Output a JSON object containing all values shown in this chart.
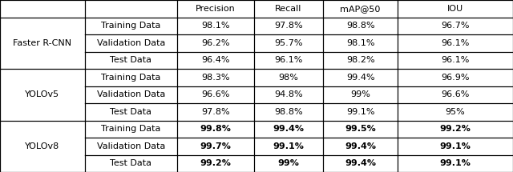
{
  "figsize": [
    6.4,
    2.15
  ],
  "dpi": 100,
  "col_headers": [
    "Precision",
    "Recall",
    "mAP@50",
    "IOU"
  ],
  "row_groups": [
    {
      "model": "Faster R-CNN",
      "rows": [
        {
          "label": "Training Data",
          "vals": [
            "98.1%",
            "97.8%",
            "98.8%",
            "96.7%"
          ],
          "bold": false
        },
        {
          "label": "Validation Data",
          "vals": [
            "96.2%",
            "95.7%",
            "98.1%",
            "96.1%"
          ],
          "bold": false
        },
        {
          "label": "Test Data",
          "vals": [
            "96.4%",
            "96.1%",
            "98.2%",
            "96.1%"
          ],
          "bold": false
        }
      ]
    },
    {
      "model": "YOLOv5",
      "rows": [
        {
          "label": "Training Data",
          "vals": [
            "98.3%",
            "98%",
            "99.4%",
            "96.9%"
          ],
          "bold": false
        },
        {
          "label": "Validation Data",
          "vals": [
            "96.6%",
            "94.8%",
            "99%",
            "96.6%"
          ],
          "bold": false
        },
        {
          "label": "Test Data",
          "vals": [
            "97.8%",
            "98.8%",
            "99.1%",
            "95%"
          ],
          "bold": false
        }
      ]
    },
    {
      "model": "YOLOv8",
      "rows": [
        {
          "label": "Training Data",
          "vals": [
            "99.8%",
            "99.4%",
            "99.5%",
            "99.2%"
          ],
          "bold": true
        },
        {
          "label": "Validation Data",
          "vals": [
            "99.7%",
            "99.1%",
            "99.4%",
            "99.1%"
          ],
          "bold": true
        },
        {
          "label": "Test Data",
          "vals": [
            "99.2%",
            "99%",
            "99.4%",
            "99.1%"
          ],
          "bold": true
        }
      ]
    }
  ],
  "font_size": 8.0,
  "lw": 0.8
}
